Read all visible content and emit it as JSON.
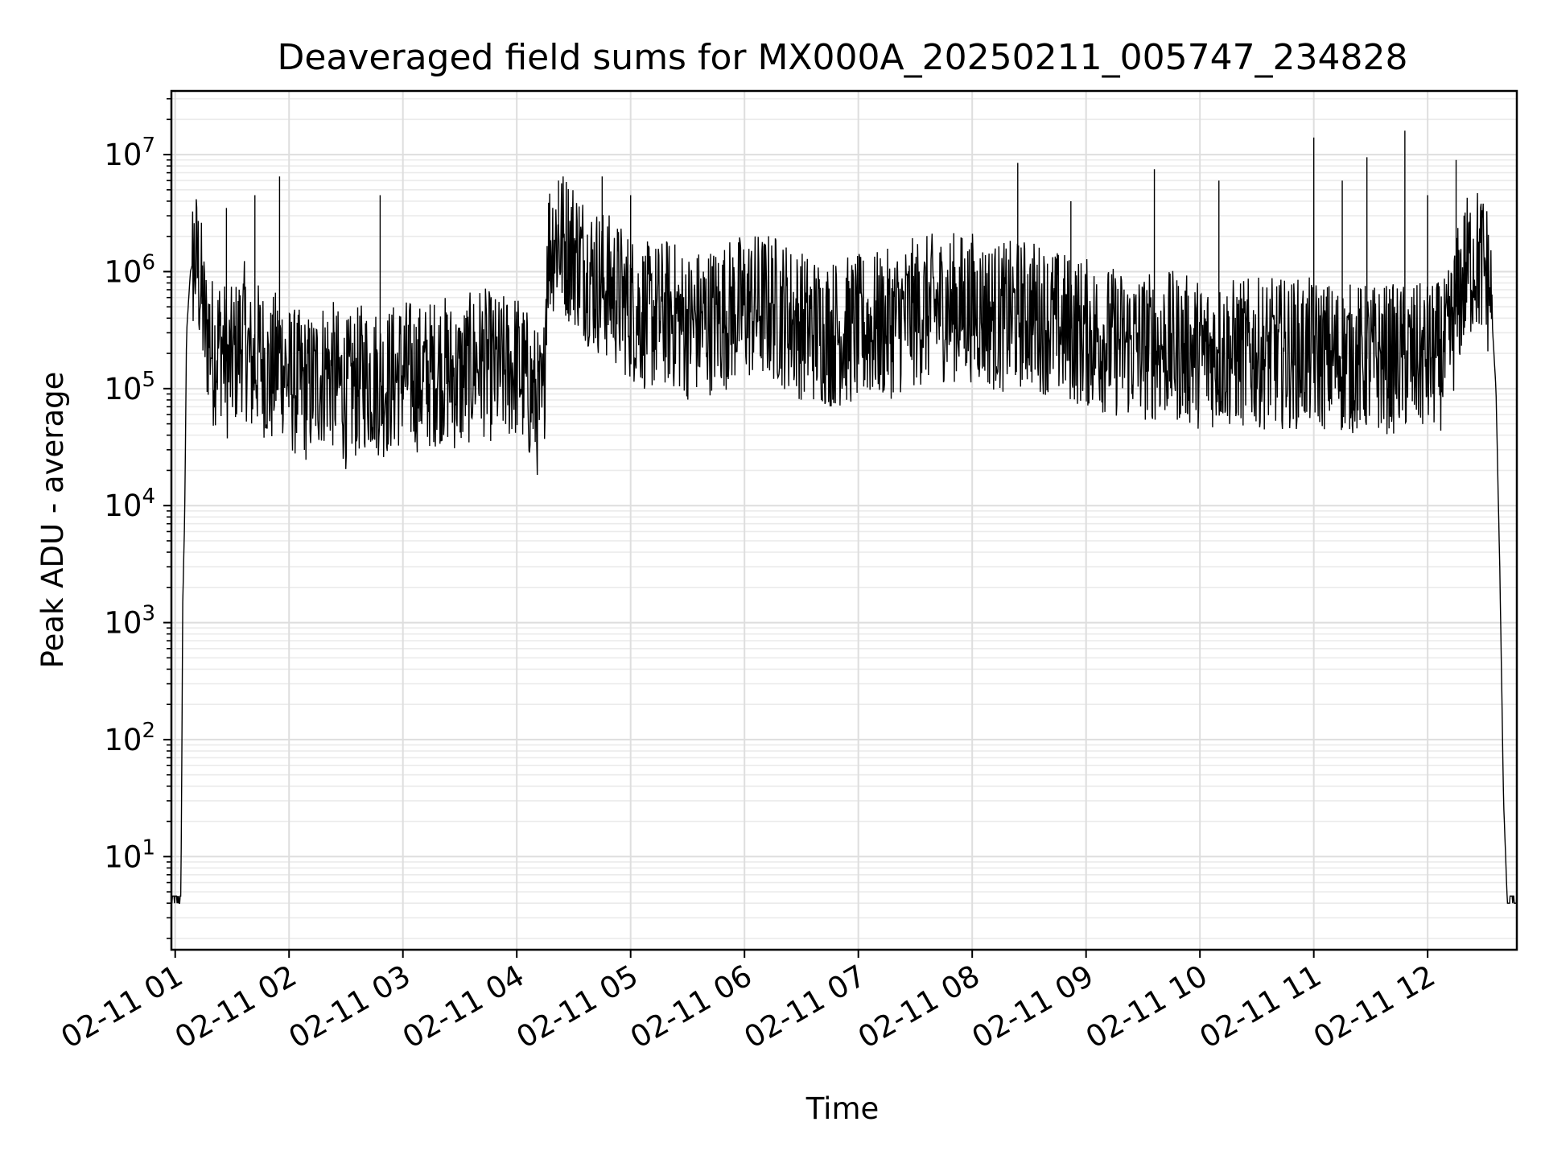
{
  "chart_data": {
    "type": "line",
    "title": "Deaveraged field sums for MX000A_20250211_005747_234828",
    "xlabel": "Time",
    "ylabel": "Peak ADU - average",
    "yscale": "log",
    "ylim": [
      1.6,
      35000000
    ],
    "xlim": [
      "2025-02-11 00:58",
      "2025-02-11 12:47"
    ],
    "grid": true,
    "x_tick_labels": [
      "02-11 01",
      "02-11 02",
      "02-11 03",
      "02-11 04",
      "02-11 05",
      "02-11 06",
      "02-11 07",
      "02-11 08",
      "02-11 09",
      "02-11 10",
      "02-11 11",
      "02-11 12"
    ],
    "x_tick_values": [
      "2025-02-11 01:00",
      "2025-02-11 02:00",
      "2025-02-11 03:00",
      "2025-02-11 04:00",
      "2025-02-11 05:00",
      "2025-02-11 06:00",
      "2025-02-11 07:00",
      "2025-02-11 08:00",
      "2025-02-11 09:00",
      "2025-02-11 10:00",
      "2025-02-11 11:00",
      "2025-02-11 12:00"
    ],
    "y_tick_labels": [
      {
        "base": "10",
        "exp": "1",
        "value": 10
      },
      {
        "base": "10",
        "exp": "2",
        "value": 100
      },
      {
        "base": "10",
        "exp": "3",
        "value": 1000
      },
      {
        "base": "10",
        "exp": "4",
        "value": 10000
      },
      {
        "base": "10",
        "exp": "5",
        "value": 100000
      },
      {
        "base": "10",
        "exp": "6",
        "value": 1000000
      },
      {
        "base": "10",
        "exp": "7",
        "value": 10000000
      }
    ],
    "series": [
      {
        "color": "#000000",
        "x": [
          "2025-02-11 00:58",
          "2025-02-11 01:02",
          "2025-02-11 01:03",
          "2025-02-11 01:04",
          "2025-02-11 01:05",
          "2025-02-11 01:06",
          "2025-02-11 01:08",
          "2025-02-11 01:10",
          "2025-02-11 01:12",
          "2025-02-11 01:14",
          "2025-02-11 01:16",
          "2025-02-11 01:18",
          "2025-02-11 01:20",
          "2025-02-11 01:24",
          "2025-02-11 01:28",
          "2025-02-11 01:32",
          "2025-02-11 01:36",
          "2025-02-11 01:40",
          "2025-02-11 01:45",
          "2025-02-11 01:50",
          "2025-02-11 01:55",
          "2025-02-11 02:00",
          "2025-02-11 02:10",
          "2025-02-11 02:20",
          "2025-02-11 02:30",
          "2025-02-11 02:40",
          "2025-02-11 02:50",
          "2025-02-11 03:00",
          "2025-02-11 03:10",
          "2025-02-11 03:20",
          "2025-02-11 03:30",
          "2025-02-11 03:40",
          "2025-02-11 03:50",
          "2025-02-11 04:00",
          "2025-02-11 04:10",
          "2025-02-11 04:14",
          "2025-02-11 04:16",
          "2025-02-11 04:20",
          "2025-02-11 04:30",
          "2025-02-11 04:40",
          "2025-02-11 04:50",
          "2025-02-11 05:00",
          "2025-02-11 05:10",
          "2025-02-11 05:20",
          "2025-02-11 05:30",
          "2025-02-11 05:45",
          "2025-02-11 06:00",
          "2025-02-11 06:15",
          "2025-02-11 06:30",
          "2025-02-11 06:45",
          "2025-02-11 07:00",
          "2025-02-11 07:15",
          "2025-02-11 07:30",
          "2025-02-11 07:45",
          "2025-02-11 08:00",
          "2025-02-11 08:15",
          "2025-02-11 08:30",
          "2025-02-11 08:45",
          "2025-02-11 09:00",
          "2025-02-11 09:15",
          "2025-02-11 09:30",
          "2025-02-11 09:45",
          "2025-02-11 10:00",
          "2025-02-11 10:15",
          "2025-02-11 10:30",
          "2025-02-11 10:45",
          "2025-02-11 11:00",
          "2025-02-11 11:15",
          "2025-02-11 11:30",
          "2025-02-11 11:45",
          "2025-02-11 12:00",
          "2025-02-11 12:10",
          "2025-02-11 12:15",
          "2025-02-11 12:20",
          "2025-02-11 12:25",
          "2025-02-11 12:30",
          "2025-02-11 12:33",
          "2025-02-11 12:36",
          "2025-02-11 12:38",
          "2025-02-11 12:40",
          "2025-02-11 12:42",
          "2025-02-11 12:43",
          "2025-02-11 12:44",
          "2025-02-11 12:47"
        ],
        "y": [
          4,
          4,
          4,
          1500,
          8000,
          300000,
          1000000,
          1300000,
          1100000,
          600000,
          300000,
          300000,
          200000,
          250000,
          150000,
          200000,
          300000,
          150000,
          200000,
          120000,
          200000,
          120000,
          100000,
          150000,
          90000,
          130000,
          110000,
          140000,
          120000,
          150000,
          120000,
          180000,
          140000,
          160000,
          80000,
          60000,
          1500000,
          2000000,
          1500000,
          900000,
          700000,
          500000,
          400000,
          450000,
          350000,
          400000,
          500000,
          500000,
          350000,
          300000,
          320000,
          350000,
          450000,
          500000,
          500000,
          400000,
          450000,
          350000,
          300000,
          250000,
          230000,
          230000,
          200000,
          200000,
          200000,
          200000,
          200000,
          180000,
          180000,
          180000,
          180000,
          200000,
          500000,
          1000000,
          1300000,
          1100000,
          700000,
          100000,
          3000,
          30,
          4,
          4,
          4,
          4
        ],
        "spikes": [
          {
            "x": "2025-02-11 01:27",
            "y": 3500000
          },
          {
            "x": "2025-02-11 01:42",
            "y": 4500000
          },
          {
            "x": "2025-02-11 01:55",
            "y": 6500000
          },
          {
            "x": "2025-02-11 02:48",
            "y": 4500000
          },
          {
            "x": "2025-02-11 04:22",
            "y": 6000000
          },
          {
            "x": "2025-02-11 04:45",
            "y": 6500000
          },
          {
            "x": "2025-02-11 05:00",
            "y": 4500000
          },
          {
            "x": "2025-02-11 08:24",
            "y": 8500000
          },
          {
            "x": "2025-02-11 08:52",
            "y": 4000000
          },
          {
            "x": "2025-02-11 09:36",
            "y": 7500000
          },
          {
            "x": "2025-02-11 10:10",
            "y": 6000000
          },
          {
            "x": "2025-02-11 11:00",
            "y": 14000000
          },
          {
            "x": "2025-02-11 11:15",
            "y": 6000000
          },
          {
            "x": "2025-02-11 11:28",
            "y": 9500000
          },
          {
            "x": "2025-02-11 11:48",
            "y": 16000000
          },
          {
            "x": "2025-02-11 12:00",
            "y": 4500000
          },
          {
            "x": "2025-02-11 12:15",
            "y": 9000000
          }
        ]
      }
    ]
  }
}
